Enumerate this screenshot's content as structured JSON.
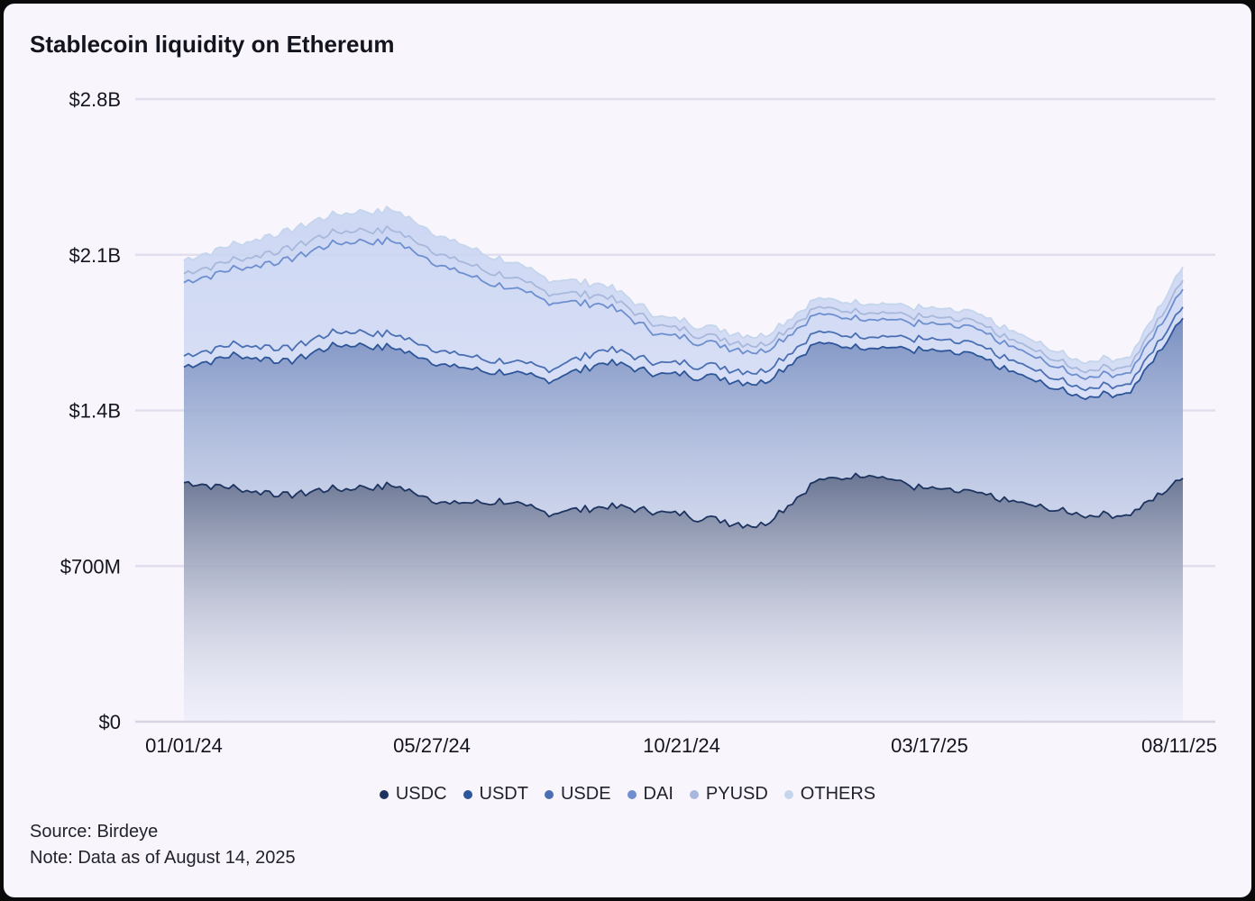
{
  "title": "Stablecoin liquidity on Ethereum",
  "source": "Source: Birdeye",
  "note": "Note: Data as of August 14, 2025",
  "chart_data": {
    "type": "area",
    "stacked": true,
    "title": "Stablecoin liquidity on Ethereum",
    "xlabel": "",
    "ylabel": "",
    "ylim": [
      0,
      2.8
    ],
    "y_unit": "billions USD",
    "yticks": [
      0,
      0.7,
      1.4,
      2.1,
      2.8
    ],
    "ytick_labels": [
      "$0",
      "$700M",
      "$1.4B",
      "$2.1B",
      "$2.8B"
    ],
    "xtick_labels": [
      "01/01/24",
      "05/27/24",
      "10/21/24",
      "03/17/25",
      "08/11/25"
    ],
    "grid": true,
    "legend_position": "bottom",
    "x": [
      "01/01/24",
      "02/19/24",
      "03/17/24",
      "04/14/24",
      "05/12/24",
      "05/27/24",
      "06/23/24",
      "08/04/24",
      "09/15/24",
      "10/21/24",
      "11/17/24",
      "12/15/24",
      "01/12/25",
      "02/16/25",
      "03/17/25",
      "04/20/25",
      "05/25/25",
      "06/22/25",
      "07/20/25",
      "08/11/25"
    ],
    "series": [
      {
        "name": "USDC",
        "color": "#1d3461",
        "values": [
          1.08,
          1.05,
          1.02,
          1.05,
          1.06,
          0.98,
          0.99,
          0.94,
          0.97,
          0.95,
          0.91,
          0.88,
          1.08,
          1.12,
          1.05,
          1.03,
          0.98,
          0.93,
          0.93,
          1.1
        ]
      },
      {
        "name": "USDT",
        "color": "#2d5599",
        "values": [
          0.52,
          0.6,
          0.6,
          0.65,
          0.62,
          0.62,
          0.58,
          0.6,
          0.65,
          0.62,
          0.64,
          0.64,
          0.62,
          0.57,
          0.62,
          0.62,
          0.57,
          0.53,
          0.55,
          0.72
        ]
      },
      {
        "name": "USDE",
        "color": "#4a6fb3",
        "values": [
          0.05,
          0.05,
          0.06,
          0.06,
          0.06,
          0.06,
          0.05,
          0.05,
          0.06,
          0.05,
          0.05,
          0.05,
          0.05,
          0.05,
          0.05,
          0.05,
          0.05,
          0.04,
          0.04,
          0.05
        ]
      },
      {
        "name": "DAI",
        "color": "#6d8fd0",
        "values": [
          0.33,
          0.34,
          0.4,
          0.4,
          0.42,
          0.38,
          0.34,
          0.3,
          0.2,
          0.13,
          0.1,
          0.09,
          0.08,
          0.08,
          0.07,
          0.07,
          0.06,
          0.05,
          0.05,
          0.08
        ]
      },
      {
        "name": "PYUSD",
        "color": "#a7b8dc",
        "values": [
          0.04,
          0.04,
          0.05,
          0.05,
          0.05,
          0.05,
          0.05,
          0.04,
          0.04,
          0.04,
          0.03,
          0.03,
          0.03,
          0.03,
          0.03,
          0.03,
          0.03,
          0.03,
          0.03,
          0.04
        ]
      },
      {
        "name": "OTHERS",
        "color": "#c5d6ec",
        "values": [
          0.06,
          0.07,
          0.08,
          0.08,
          0.09,
          0.08,
          0.07,
          0.06,
          0.05,
          0.04,
          0.04,
          0.04,
          0.04,
          0.04,
          0.04,
          0.04,
          0.04,
          0.04,
          0.04,
          0.06
        ]
      }
    ]
  }
}
